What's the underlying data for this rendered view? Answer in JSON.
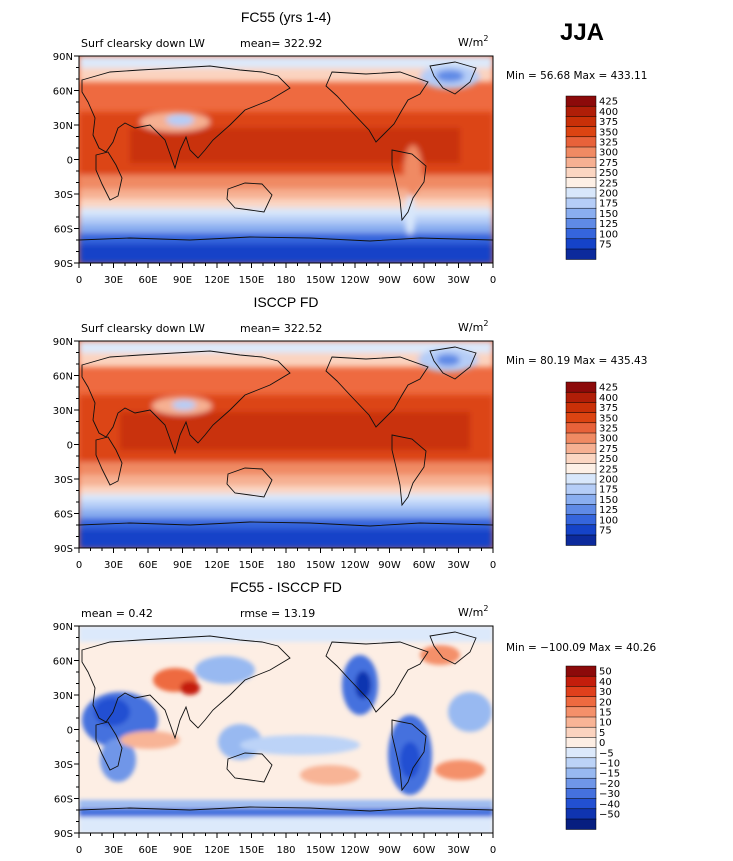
{
  "season": "JJA",
  "panels": [
    {
      "title": "FC55 (yrs 1-4)",
      "left_label": "Surf clearsky down LW",
      "center_label": "mean= 322.92",
      "units_text": "W/m",
      "units_sup": "2",
      "minmax": "Min =  56.68 Max = 433.11",
      "lat_ticks": [
        "90N",
        "60N",
        "30N",
        "0",
        "30S",
        "60S",
        "90S"
      ],
      "lon_ticks": [
        "0",
        "30E",
        "60E",
        "90E",
        "120E",
        "150E",
        "180",
        "150W",
        "120W",
        "90W",
        "60W",
        "30W",
        "0"
      ],
      "colorbar": {
        "labels": [
          "425",
          "400",
          "375",
          "350",
          "325",
          "300",
          "275",
          "250",
          "225",
          "200",
          "175",
          "150",
          "125",
          "100",
          "75"
        ],
        "colors": [
          "#8c0a0a",
          "#b01e08",
          "#c93008",
          "#dc4412",
          "#e8623a",
          "#f08a63",
          "#f6b092",
          "#fbd6c2",
          "#fdf0e6",
          "#d8e7fb",
          "#b5cdf7",
          "#8aaef0",
          "#5f8ae6",
          "#3565dc",
          "#1543c8",
          "#0c2a9c"
        ]
      }
    },
    {
      "title": "ISCCP FD",
      "left_label": "Surf clearsky down LW",
      "center_label": "mean= 322.52",
      "units_text": "W/m",
      "units_sup": "2",
      "minmax": "Min =  80.19 Max = 435.43",
      "lat_ticks": [
        "90N",
        "60N",
        "30N",
        "0",
        "30S",
        "60S",
        "90S"
      ],
      "lon_ticks": [
        "0",
        "30E",
        "60E",
        "90E",
        "120E",
        "150E",
        "180",
        "150W",
        "120W",
        "90W",
        "60W",
        "30W",
        "0"
      ],
      "colorbar": {
        "labels": [
          "425",
          "400",
          "375",
          "350",
          "325",
          "300",
          "275",
          "250",
          "225",
          "200",
          "175",
          "150",
          "125",
          "100",
          "75"
        ],
        "colors": [
          "#8c0a0a",
          "#b01e08",
          "#c93008",
          "#dc4412",
          "#e8623a",
          "#f08a63",
          "#f6b092",
          "#fbd6c2",
          "#fdf0e6",
          "#d8e7fb",
          "#b5cdf7",
          "#8aaef0",
          "#5f8ae6",
          "#3565dc",
          "#1543c8",
          "#0c2a9c"
        ]
      }
    },
    {
      "title": "FC55 - ISCCP FD",
      "left_label": "mean =    0.42",
      "center_label": "rmse =   13.19",
      "units_text": "W/m",
      "units_sup": "2",
      "minmax": "Min = −100.09 Max =  40.26",
      "lat_ticks": [
        "90N",
        "60N",
        "30N",
        "0",
        "30S",
        "60S",
        "90S"
      ],
      "lon_ticks": [
        "0",
        "30E",
        "60E",
        "90E",
        "120E",
        "150E",
        "180",
        "150W",
        "120W",
        "90W",
        "60W",
        "30W",
        "0"
      ],
      "colorbar": {
        "labels": [
          "50",
          "40",
          "30",
          "20",
          "15",
          "10",
          "5",
          "0",
          "−5",
          "−10",
          "−15",
          "−20",
          "−30",
          "−40",
          "−50"
        ],
        "colors": [
          "#8c0a0a",
          "#c41e0c",
          "#e0401c",
          "#ee6a40",
          "#f4906a",
          "#f8b496",
          "#fbd3bf",
          "#fdeee4",
          "#dce9fb",
          "#bcd3f7",
          "#98b9f1",
          "#6f96e8",
          "#4571de",
          "#2250d2",
          "#0f34b0",
          "#071e80"
        ]
      }
    }
  ]
}
